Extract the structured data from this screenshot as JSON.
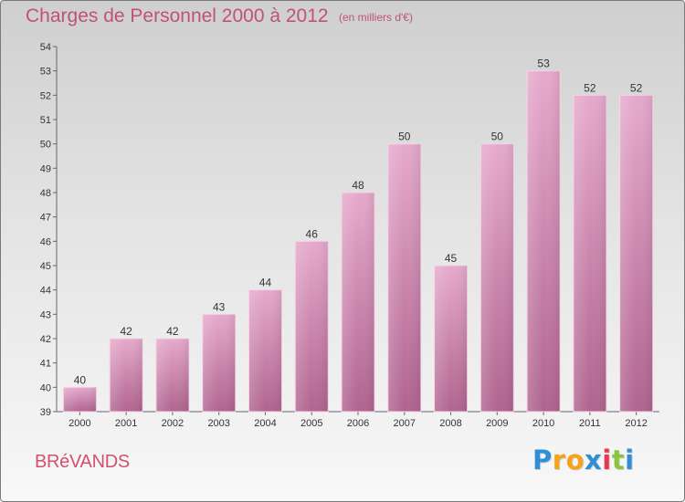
{
  "chart_data": {
    "type": "bar",
    "title": "Charges de Personnel 2000 à 2012",
    "subtitle": "(en milliers d'€)",
    "categories": [
      "2000",
      "2001",
      "2002",
      "2003",
      "2004",
      "2005",
      "2006",
      "2007",
      "2008",
      "2009",
      "2010",
      "2011",
      "2012"
    ],
    "values": [
      40,
      42,
      42,
      43,
      44,
      46,
      48,
      50,
      45,
      50,
      53,
      52,
      52
    ],
    "data_labels": [
      "40",
      "42",
      "42",
      "43",
      "44",
      "46",
      "48",
      "50",
      "45",
      "50",
      "53",
      "52",
      "52"
    ],
    "ylim": [
      39,
      54
    ],
    "yticks": [
      "39",
      "40",
      "41",
      "42",
      "43",
      "44",
      "45",
      "46",
      "47",
      "48",
      "49",
      "50",
      "51",
      "52",
      "53",
      "54"
    ],
    "xlabel": "",
    "ylabel": "",
    "grid": false,
    "legend": "none",
    "bar_color": "#d98ab6"
  },
  "footer": {
    "commune": "BRéVANDS",
    "brand_letters": [
      "P",
      "r",
      "o",
      "x",
      "i",
      "t",
      "i"
    ],
    "brand_colors": [
      "#2e8fd6",
      "#f7a21b",
      "#f7a21b",
      "#2e8fd6",
      "#e8384f",
      "#8bc53f",
      "#2e8fd6"
    ]
  }
}
